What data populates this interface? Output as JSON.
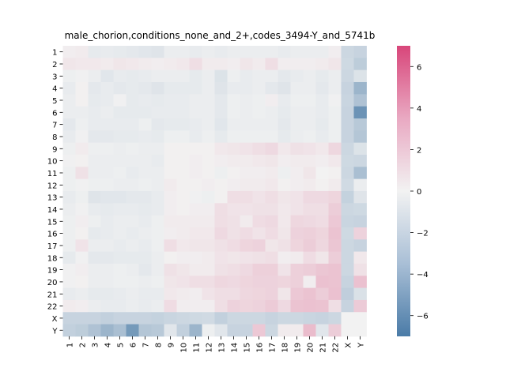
{
  "chart_data": {
    "type": "heatmap",
    "title": "male_chorion,conditions_none_and_2+,codes_3494-Y_and_5741b",
    "xlabel": "",
    "ylabel": "",
    "row_labels": [
      "1",
      "2",
      "3",
      "4",
      "5",
      "6",
      "7",
      "8",
      "9",
      "10",
      "11",
      "12",
      "13",
      "14",
      "15",
      "16",
      "17",
      "18",
      "19",
      "20",
      "21",
      "22",
      "X",
      "Y"
    ],
    "col_labels": [
      "1",
      "2",
      "3",
      "4",
      "5",
      "6",
      "7",
      "8",
      "9",
      "10",
      "11",
      "12",
      "13",
      "14",
      "15",
      "16",
      "17",
      "18",
      "19",
      "20",
      "21",
      "22",
      "X",
      "Y"
    ],
    "colorbar": {
      "min": -7,
      "max": 7,
      "ticks": [
        -6,
        -4,
        -2,
        0,
        2,
        4,
        6
      ],
      "tick_labels": [
        "−6",
        "−4",
        "−2",
        "0",
        "2",
        "4",
        "6"
      ],
      "low_color": "#4a7ba7",
      "mid_color": "#f2f2f2",
      "high_color": "#d8467a"
    },
    "values": [
      [
        0.2,
        0.3,
        -0.5,
        -0.4,
        -0.5,
        -0.6,
        -0.7,
        -0.8,
        -0.3,
        -0.3,
        -0.4,
        -0.3,
        -0.4,
        -0.3,
        -0.3,
        -0.3,
        -0.3,
        -0.4,
        -0.3,
        -0.3,
        -0.3,
        0.2,
        -1.6,
        -1.8
      ],
      [
        0.5,
        0.4,
        0.4,
        0.3,
        0.5,
        0.4,
        0.3,
        0.2,
        0.3,
        0.4,
        0.8,
        0.3,
        0.3,
        0.2,
        0.5,
        0.3,
        0.8,
        0.2,
        0.2,
        0.2,
        0.3,
        0.5,
        -1.5,
        -2.2
      ],
      [
        -0.2,
        -0.1,
        -0.3,
        -0.7,
        -0.4,
        -0.5,
        -0.4,
        -0.3,
        -0.3,
        -0.3,
        -0.5,
        -0.3,
        -0.9,
        -0.2,
        -0.4,
        -0.3,
        -0.3,
        -0.6,
        -0.4,
        -0.3,
        -0.5,
        -0.3,
        -1.6,
        -0.9
      ],
      [
        -0.4,
        0.1,
        -0.6,
        -0.4,
        -0.6,
        -0.5,
        -0.6,
        -0.8,
        -0.5,
        -0.5,
        -0.5,
        -0.3,
        -0.8,
        -0.4,
        -0.4,
        -0.3,
        -0.6,
        -0.8,
        -0.3,
        -0.3,
        -0.6,
        -0.3,
        -1.8,
        -3.6
      ],
      [
        -0.3,
        0.1,
        -0.5,
        -0.4,
        -0.1,
        -0.5,
        -0.4,
        -0.5,
        -0.4,
        -0.4,
        -0.3,
        -0.3,
        -0.6,
        -0.2,
        -0.3,
        -0.2,
        0.2,
        -0.4,
        -0.2,
        -0.2,
        -0.4,
        -0.1,
        -1.7,
        -2.8
      ],
      [
        -0.3,
        -0.3,
        -0.4,
        -0.3,
        -0.5,
        -0.5,
        -0.5,
        -0.4,
        -0.4,
        -0.4,
        -0.3,
        -0.3,
        -0.6,
        -0.2,
        -0.3,
        -0.2,
        -0.3,
        -0.5,
        -0.3,
        -0.3,
        -0.4,
        -0.2,
        -1.8,
        -5.6
      ],
      [
        -0.6,
        -0.2,
        -0.4,
        -0.4,
        -0.4,
        -0.4,
        -0.2,
        -0.6,
        -0.5,
        -0.5,
        -0.4,
        -0.3,
        -0.7,
        -0.3,
        -0.3,
        -0.3,
        -0.3,
        -0.6,
        -0.3,
        -0.3,
        -0.5,
        -0.2,
        -1.8,
        -2.4
      ],
      [
        -0.4,
        -0.1,
        -0.6,
        -0.6,
        -0.5,
        -0.5,
        -0.4,
        -0.5,
        -0.2,
        -0.2,
        -0.4,
        -0.2,
        -0.5,
        -0.2,
        -0.2,
        -0.2,
        -0.2,
        -0.5,
        -0.3,
        -0.2,
        -0.4,
        -0.2,
        -1.8,
        -2.6
      ],
      [
        -0.2,
        0.3,
        -0.2,
        -0.2,
        -0.3,
        -0.2,
        -0.3,
        -0.3,
        0.1,
        0.1,
        0.1,
        0.1,
        0.4,
        0.5,
        0.6,
        0.8,
        1.0,
        0.4,
        0.7,
        0.6,
        0.4,
        1.1,
        -1.6,
        -0.9
      ],
      [
        -0.1,
        0.1,
        -0.3,
        -0.3,
        -0.3,
        -0.3,
        -0.3,
        -0.4,
        0.1,
        0.1,
        0.2,
        0.1,
        0.2,
        0.3,
        0.3,
        0.4,
        0.5,
        0.2,
        0.3,
        0.3,
        0.2,
        0.4,
        -1.5,
        -1.6
      ],
      [
        -0.2,
        0.7,
        -0.3,
        -0.3,
        -0.2,
        -0.4,
        -0.3,
        -0.3,
        0.1,
        0.1,
        0.2,
        0.1,
        -0.2,
        0.1,
        0.2,
        0.2,
        0.3,
        -0.2,
        0.2,
        0.5,
        0.0,
        0.1,
        -1.6,
        -3.0
      ],
      [
        -0.2,
        -0.1,
        -0.2,
        -0.2,
        -0.3,
        -0.3,
        -0.2,
        -0.3,
        0.3,
        0.1,
        0.1,
        0.2,
        0.1,
        0.2,
        0.3,
        0.3,
        0.4,
        0.1,
        0.2,
        0.3,
        0.1,
        0.3,
        -1.4,
        -0.3
      ],
      [
        -0.4,
        -0.2,
        -0.8,
        -0.7,
        -0.7,
        -0.6,
        -0.6,
        -0.4,
        0.2,
        0.1,
        -0.1,
        -0.2,
        0.1,
        0.8,
        0.8,
        0.6,
        0.8,
        0.5,
        0.6,
        1.0,
        1.0,
        1.2,
        -1.9,
        -0.8
      ],
      [
        -0.3,
        -0.1,
        -0.4,
        -0.5,
        -0.4,
        -0.4,
        -0.5,
        -0.4,
        0.2,
        0.1,
        0.2,
        0.2,
        0.8,
        0.6,
        0.6,
        0.7,
        0.7,
        0.4,
        0.6,
        0.8,
        0.8,
        1.5,
        -1.6,
        -1.5
      ],
      [
        -0.2,
        0.2,
        -0.2,
        -0.4,
        -0.3,
        -0.3,
        -0.4,
        -0.2,
        0.3,
        0.3,
        0.3,
        0.3,
        0.8,
        0.7,
        0.3,
        0.9,
        1.0,
        0.4,
        1.1,
        1.0,
        0.9,
        1.7,
        -1.7,
        -1.8
      ],
      [
        -0.2,
        0.1,
        -0.5,
        -0.4,
        -0.3,
        -0.4,
        -0.3,
        -0.2,
        0.2,
        0.3,
        0.4,
        0.4,
        1.0,
        0.7,
        0.9,
        0.6,
        0.9,
        0.5,
        1.3,
        1.4,
        1.2,
        1.9,
        -1.5,
        1.3
      ],
      [
        -0.2,
        0.6,
        -0.3,
        -0.3,
        -0.4,
        -0.3,
        -0.4,
        -0.2,
        0.8,
        0.4,
        0.5,
        0.5,
        0.7,
        0.9,
        1.2,
        1.3,
        0.5,
        0.7,
        1.2,
        1.5,
        1.1,
        1.8,
        -1.6,
        -1.8
      ],
      [
        -0.5,
        -0.1,
        -0.6,
        -0.6,
        -0.5,
        -0.5,
        -0.5,
        -0.3,
        0.1,
        0.2,
        0.2,
        0.3,
        0.6,
        0.5,
        0.6,
        0.7,
        0.8,
        0.2,
        0.3,
        0.9,
        0.5,
        1.5,
        -1.6,
        0.4
      ],
      [
        -0.1,
        0.2,
        -0.3,
        -0.3,
        -0.2,
        -0.3,
        -0.6,
        -0.3,
        0.7,
        0.5,
        0.3,
        0.3,
        0.7,
        0.8,
        1.0,
        1.4,
        1.4,
        0.6,
        1.4,
        1.5,
        1.8,
        1.9,
        -1.6,
        0.7
      ],
      [
        -0.1,
        0.1,
        -0.3,
        -0.3,
        -0.2,
        -0.2,
        -0.3,
        -0.2,
        0.5,
        0.6,
        0.8,
        0.8,
        1.1,
        1.0,
        1.2,
        1.3,
        1.3,
        1.2,
        1.4,
        0.2,
        2.0,
        1.9,
        -1.8,
        2.0
      ],
      [
        -0.4,
        -0.3,
        -0.5,
        -0.5,
        -0.4,
        -0.3,
        -0.4,
        -0.4,
        0.4,
        0.3,
        0.2,
        0.6,
        0.8,
        0.8,
        1.1,
        1.2,
        1.3,
        0.5,
        1.7,
        1.9,
        1.5,
        2.0,
        -2.1,
        -1.0
      ],
      [
        0.3,
        0.2,
        -0.3,
        -0.4,
        -0.4,
        -0.3,
        -0.4,
        -0.3,
        0.9,
        0.2,
        0.2,
        0.2,
        0.8,
        1.3,
        1.2,
        1.3,
        1.6,
        1.0,
        1.9,
        2.0,
        1.9,
        0.8,
        -1.8,
        1.6
      ],
      [
        -1.8,
        -1.8,
        -1.8,
        -2.0,
        -1.8,
        -1.8,
        -1.8,
        -1.9,
        -1.7,
        -1.6,
        -1.5,
        -1.4,
        -2.0,
        -1.6,
        -1.6,
        -1.6,
        -1.8,
        -1.6,
        -1.6,
        -1.7,
        -1.8,
        -1.6,
        0.0,
        0.0
      ],
      [
        -2.0,
        -2.2,
        -2.8,
        -3.6,
        -3.0,
        -5.2,
        -2.6,
        -2.4,
        -0.7,
        -2.0,
        -3.6,
        -0.2,
        -0.7,
        -1.8,
        -1.8,
        1.7,
        -1.6,
        0.3,
        0.3,
        2.2,
        -0.7,
        1.5,
        0.0,
        0.0
      ]
    ]
  }
}
